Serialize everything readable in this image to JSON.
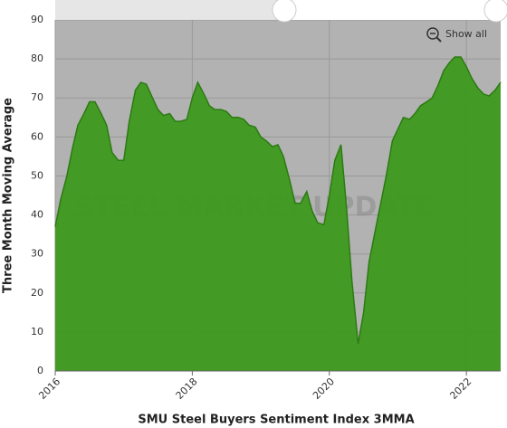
{
  "chart_data": {
    "type": "area",
    "title": "SMU Steel Buyers Sentiment Index 3MMA",
    "y_label": "Three Month Moving Average",
    "watermark": "STEEL MARKET UPDATE",
    "button": "Show all",
    "color": "#3d9a1e",
    "line_color": "#2c7a12",
    "grid": true,
    "xlim": [
      2016,
      2022.5
    ],
    "xticks": [
      2016,
      2018,
      2020,
      2022
    ],
    "ylim": [
      0,
      90
    ],
    "yticks": [
      0,
      10,
      20,
      30,
      40,
      50,
      60,
      70,
      80,
      90
    ],
    "x": [
      2016.0,
      2016.08,
      2016.17,
      2016.25,
      2016.33,
      2016.42,
      2016.5,
      2016.58,
      2016.67,
      2016.75,
      2016.83,
      2016.92,
      2017.0,
      2017.08,
      2017.17,
      2017.25,
      2017.33,
      2017.42,
      2017.5,
      2017.58,
      2017.67,
      2017.75,
      2017.83,
      2017.92,
      2018.0,
      2018.08,
      2018.17,
      2018.25,
      2018.33,
      2018.42,
      2018.5,
      2018.58,
      2018.67,
      2018.75,
      2018.83,
      2018.92,
      2019.0,
      2019.08,
      2019.17,
      2019.25,
      2019.33,
      2019.42,
      2019.5,
      2019.58,
      2019.67,
      2019.75,
      2019.83,
      2019.92,
      2020.0,
      2020.08,
      2020.17,
      2020.25,
      2020.33,
      2020.42,
      2020.5,
      2020.58,
      2020.67,
      2020.75,
      2020.83,
      2020.92,
      2021.0,
      2021.08,
      2021.17,
      2021.25,
      2021.33,
      2021.42,
      2021.5,
      2021.58,
      2021.67,
      2021.75,
      2021.83,
      2021.92,
      2022.0,
      2022.08,
      2022.17,
      2022.25,
      2022.33,
      2022.42,
      2022.5
    ],
    "values": [
      37,
      44,
      50,
      57,
      63,
      66,
      69,
      69,
      66,
      63,
      56,
      54,
      54,
      64,
      72,
      74,
      73.5,
      70,
      67,
      65.5,
      66,
      64,
      64,
      64.5,
      70,
      74,
      71,
      68,
      67,
      67,
      66.5,
      65,
      65,
      64.5,
      63,
      62.5,
      60,
      59,
      57.5,
      58,
      55,
      49,
      43,
      43,
      46,
      41,
      38,
      37.5,
      45,
      54,
      58,
      42,
      23,
      7,
      15,
      28,
      36,
      43,
      50,
      59,
      62,
      65,
      64.5,
      66,
      68,
      69,
      70,
      73,
      77,
      79,
      80.5,
      80.5,
      78,
      75,
      72.5,
      71,
      70.5,
      72,
      74
    ]
  }
}
